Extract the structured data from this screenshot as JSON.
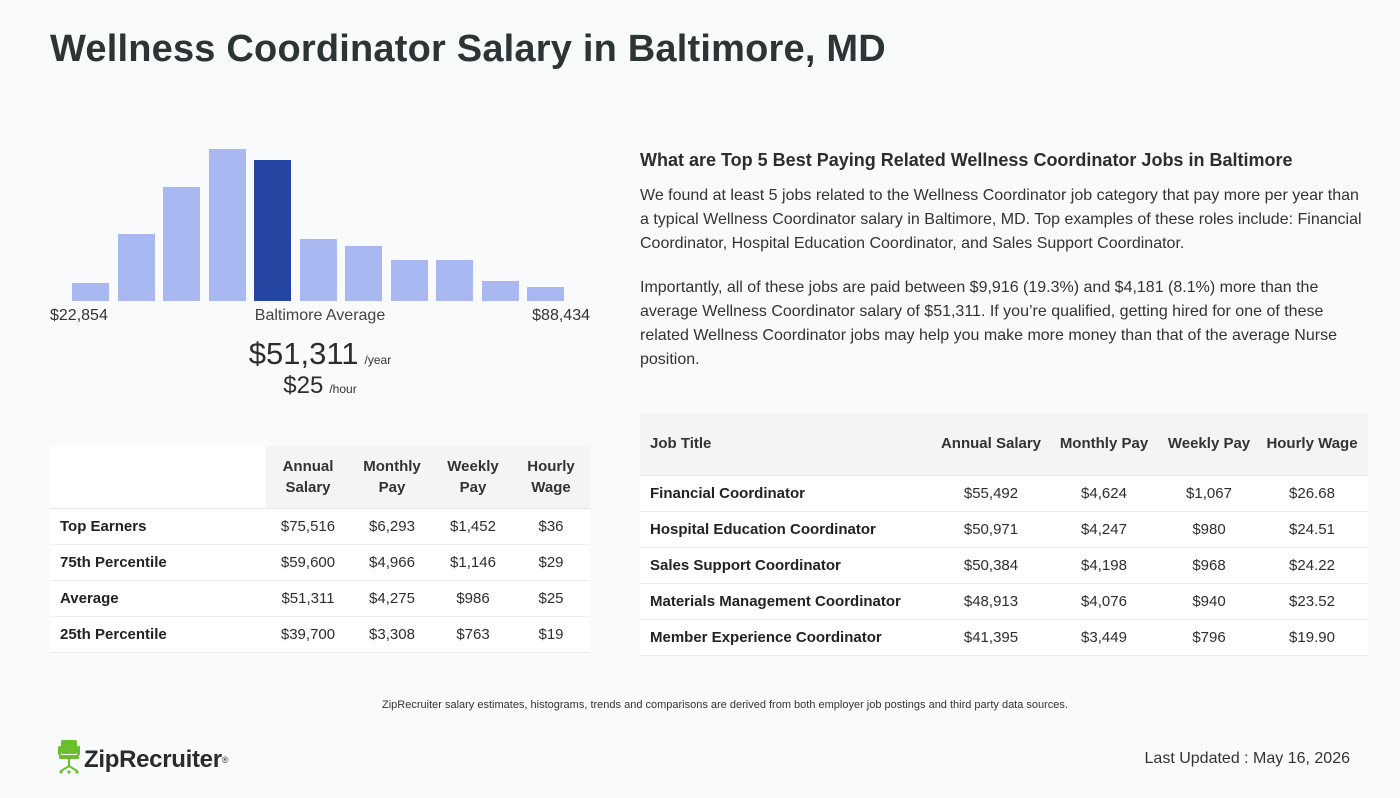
{
  "page_title": "Wellness Coordinator Salary in Baltimore, MD",
  "histogram": {
    "levels": [
      0.12,
      0.44,
      0.75,
      1.0,
      0.93,
      0.41,
      0.36,
      0.27,
      0.27,
      0.13,
      0.09
    ],
    "highlight_index": 4,
    "color_bar": "#a9b8f0",
    "color_highlight": "#2545a3",
    "min_label": "$22,854",
    "mid_label": "Baltimore Average",
    "max_label": "$88,434"
  },
  "average": {
    "year_value": "$51,311",
    "year_unit": "/year",
    "hour_value": "$25",
    "hour_unit": "/hour"
  },
  "percentile_table": {
    "headers": [
      "Annual Salary",
      "Monthly Pay",
      "Weekly Pay",
      "Hourly Wage"
    ],
    "rows": [
      {
        "label": "Top Earners",
        "annual": "$75,516",
        "monthly": "$6,293",
        "weekly": "$1,452",
        "hourly": "$36"
      },
      {
        "label": "75th Percentile",
        "annual": "$59,600",
        "monthly": "$4,966",
        "weekly": "$1,146",
        "hourly": "$29"
      },
      {
        "label": "Average",
        "annual": "$51,311",
        "monthly": "$4,275",
        "weekly": "$986",
        "hourly": "$25"
      },
      {
        "label": "25th Percentile",
        "annual": "$39,700",
        "monthly": "$3,308",
        "weekly": "$763",
        "hourly": "$19"
      }
    ]
  },
  "related": {
    "heading": "What are Top 5 Best Paying Related Wellness Coordinator Jobs in Baltimore",
    "paragraph1": "We found at least 5 jobs related to the Wellness Coordinator job category that pay more per year than a typical Wellness Coordinator salary in Baltimore, MD. Top examples of these roles include: Financial Coordinator, Hospital Education Coordinator, and Sales Support Coordinator.",
    "paragraph2": "Importantly, all of these jobs are paid between $9,916 (19.3%) and $4,181 (8.1%) more than the average Wellness Coordinator salary of $51,311. If you’re qualified, getting hired for one of these related Wellness Coordinator jobs may help you make more money than that of the average Nurse position."
  },
  "jobs_table": {
    "headers": [
      "Job Title",
      "Annual Salary",
      "Monthly Pay",
      "Weekly Pay",
      "Hourly Wage"
    ],
    "rows": [
      {
        "title": "Financial Coordinator",
        "annual": "$55,492",
        "monthly": "$4,624",
        "weekly": "$1,067",
        "hourly": "$26.68"
      },
      {
        "title": "Hospital Education Coordinator",
        "annual": "$50,971",
        "monthly": "$4,247",
        "weekly": "$980",
        "hourly": "$24.51"
      },
      {
        "title": "Sales Support Coordinator",
        "annual": "$50,384",
        "monthly": "$4,198",
        "weekly": "$968",
        "hourly": "$24.22"
      },
      {
        "title": "Materials Management Coordinator",
        "annual": "$48,913",
        "monthly": "$4,076",
        "weekly": "$940",
        "hourly": "$23.52"
      },
      {
        "title": "Member Experience Coordinator",
        "annual": "$41,395",
        "monthly": "$3,449",
        "weekly": "$796",
        "hourly": "$19.90"
      }
    ]
  },
  "footer": {
    "disclaimer": "ZipRecruiter salary estimates, histograms, trends and comparisons are derived from both employer job postings and third party data sources.",
    "logo_text": "ZipRecruiter",
    "logo_reg": "®",
    "logo_icon": "chair-icon",
    "logo_color": "#6cbf2c",
    "last_updated": "Last Updated : May 16, 2026"
  }
}
